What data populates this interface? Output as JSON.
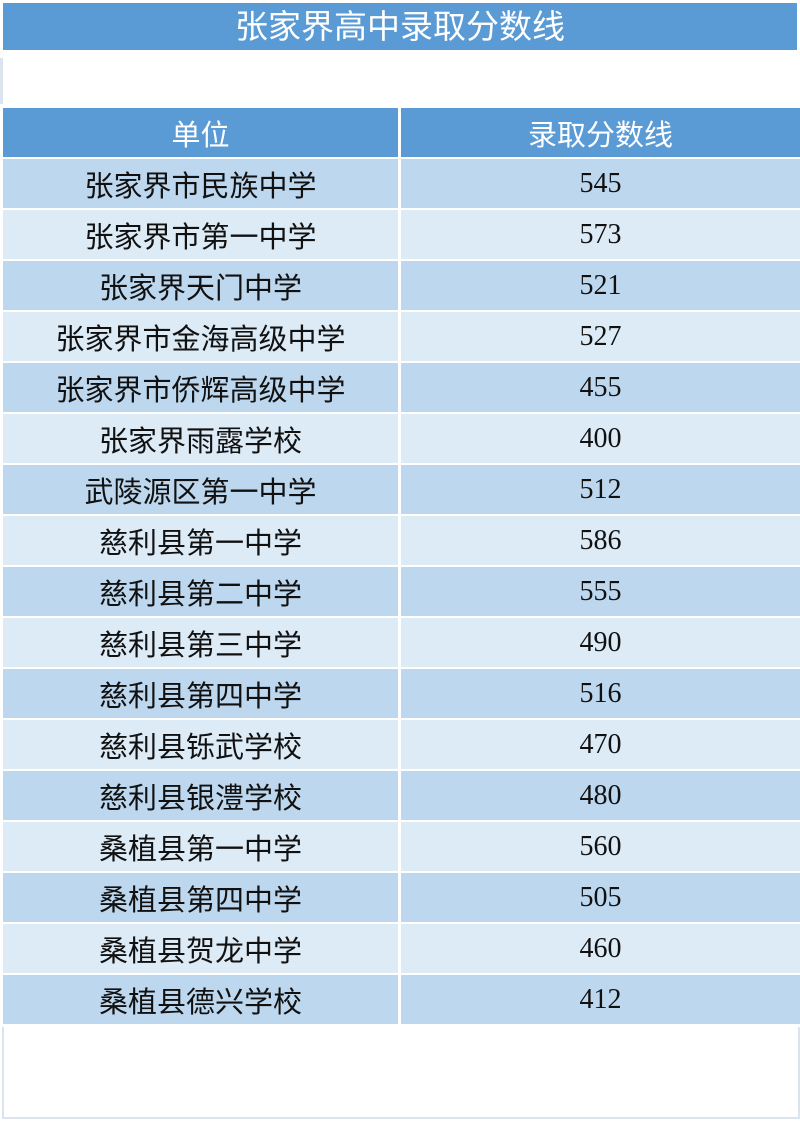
{
  "title": "张家界高中录取分数线",
  "table": {
    "headers": [
      "单位",
      "录取分数线"
    ],
    "rows": [
      {
        "school": "张家界市民族中学",
        "score": "545"
      },
      {
        "school": "张家界市第一中学",
        "score": "573"
      },
      {
        "school": "张家界天门中学",
        "score": "521"
      },
      {
        "school": "张家界市金海高级中学",
        "score": "527"
      },
      {
        "school": "张家界市侨辉高级中学",
        "score": "455"
      },
      {
        "school": "张家界雨露学校",
        "score": "400"
      },
      {
        "school": "武陵源区第一中学",
        "score": "512"
      },
      {
        "school": "慈利县第一中学",
        "score": "586"
      },
      {
        "school": "慈利县第二中学",
        "score": "555"
      },
      {
        "school": "慈利县第三中学",
        "score": "490"
      },
      {
        "school": "慈利县第四中学",
        "score": "516"
      },
      {
        "school": "慈利县铄武学校",
        "score": "470"
      },
      {
        "school": "慈利县银澧学校",
        "score": "480"
      },
      {
        "school": "桑植县第一中学",
        "score": "560"
      },
      {
        "school": "桑植县第四中学",
        "score": "505"
      },
      {
        "school": "桑植县贺龙中学",
        "score": "460"
      },
      {
        "school": "桑植县德兴学校",
        "score": "412"
      }
    ]
  },
  "colors": {
    "header": "#5b9bd5",
    "row_dark": "#bdd7ee",
    "row_light": "#ddebf7"
  }
}
